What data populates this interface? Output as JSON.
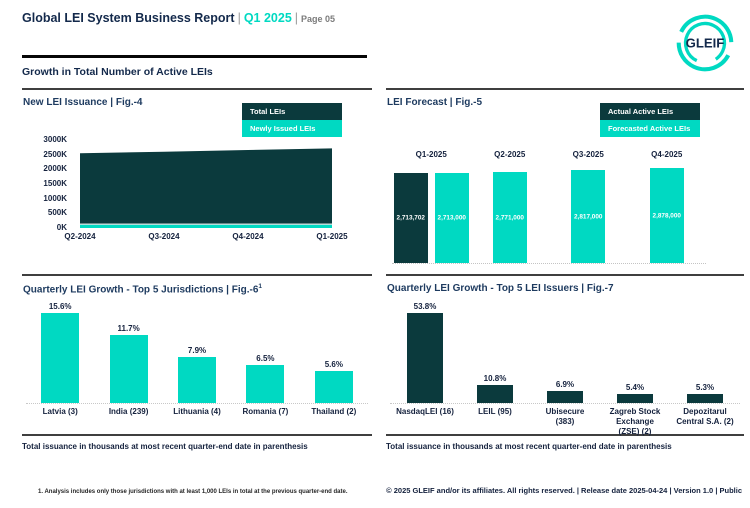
{
  "colors": {
    "teal": "#00d9c2",
    "dark": "#0b3a3d",
    "navy": "#13294b"
  },
  "header": {
    "title": "Global LEI System Business Report",
    "period": "Q1 2025",
    "page": "Page 05",
    "separator": "|",
    "logo_text": "GLEIF",
    "section_heading": "Growth in Total Number of Active LEIs"
  },
  "notes": {
    "parenthesis": "Total issuance in thousands at most recent quarter-end date in parenthesis"
  },
  "footer": {
    "footnote": "1. Analysis includes only those jurisdictions with at least 1,000 LEIs in total at the previous quarter-end date.",
    "copyright": "© 2025 GLEIF and/or its affiliates. All rights reserved. | Release date 2025-04-24 | Version 1.0 | Public"
  },
  "chart_data": [
    {
      "type": "area",
      "title": "New LEI Issuance | Fig.-4",
      "x": [
        "Q2-2024",
        "Q3-2024",
        "Q4-2024",
        "Q1-2025"
      ],
      "series": [
        {
          "name": "Total LEIs",
          "color": "#0b3a3d",
          "values": [
            2550000,
            2600000,
            2660000,
            2713702
          ]
        },
        {
          "name": "Newly Issued LEIs",
          "color": "#00d9c2",
          "values": [
            62000,
            60000,
            64000,
            68000
          ]
        }
      ],
      "ylim": [
        0,
        3000000
      ],
      "yticks": [
        "3000K",
        "2500K",
        "2000K",
        "1500K",
        "1000K",
        "500K",
        "0K"
      ],
      "legend_position": "top-right"
    },
    {
      "type": "bar",
      "title": "LEI Forecast | Fig.-5",
      "categories": [
        "Q1-2025",
        "Q2-2025",
        "Q3-2025",
        "Q4-2025"
      ],
      "series": [
        {
          "name": "Actual Active LEIs",
          "color": "#0b3a3d",
          "values": [
            2713702,
            null,
            null,
            null
          ],
          "labels": [
            "2,713,702",
            "",
            "",
            ""
          ]
        },
        {
          "name": "Forecasted Active LEIs",
          "color": "#00d9c2",
          "values": [
            2713000,
            2771000,
            2817000,
            2878000
          ],
          "labels": [
            "2,713,000",
            "2,771,000",
            "2,817,000",
            "2,878,000"
          ]
        }
      ],
      "legend_position": "top-right"
    },
    {
      "type": "bar",
      "title": "Quarterly LEI Growth - Top 5 Jurisdictions | Fig.-6",
      "title_sup": "1",
      "categories": [
        "Latvia (3)",
        "India (239)",
        "Lithuania (4)",
        "Romania (7)",
        "Thailand (2)"
      ],
      "values": [
        15.6,
        11.7,
        7.9,
        6.5,
        5.6
      ],
      "labels": [
        "15.6%",
        "11.7%",
        "7.9%",
        "6.5%",
        "5.6%"
      ],
      "unit": "%"
    },
    {
      "type": "bar",
      "title": "Quarterly LEI Growth - Top 5 LEI Issuers | Fig.-7",
      "categories": [
        "NasdaqLEI (16)",
        "LEIL (95)",
        "Ubisecure (383)",
        "Zagreb Stock Exchange (ZSE) (2)",
        "Depozitarul Central S.A. (2)"
      ],
      "values": [
        53.8,
        10.8,
        6.9,
        5.4,
        5.3
      ],
      "labels": [
        "53.8%",
        "10.8%",
        "6.9%",
        "5.4%",
        "5.3%"
      ],
      "unit": "%"
    }
  ]
}
